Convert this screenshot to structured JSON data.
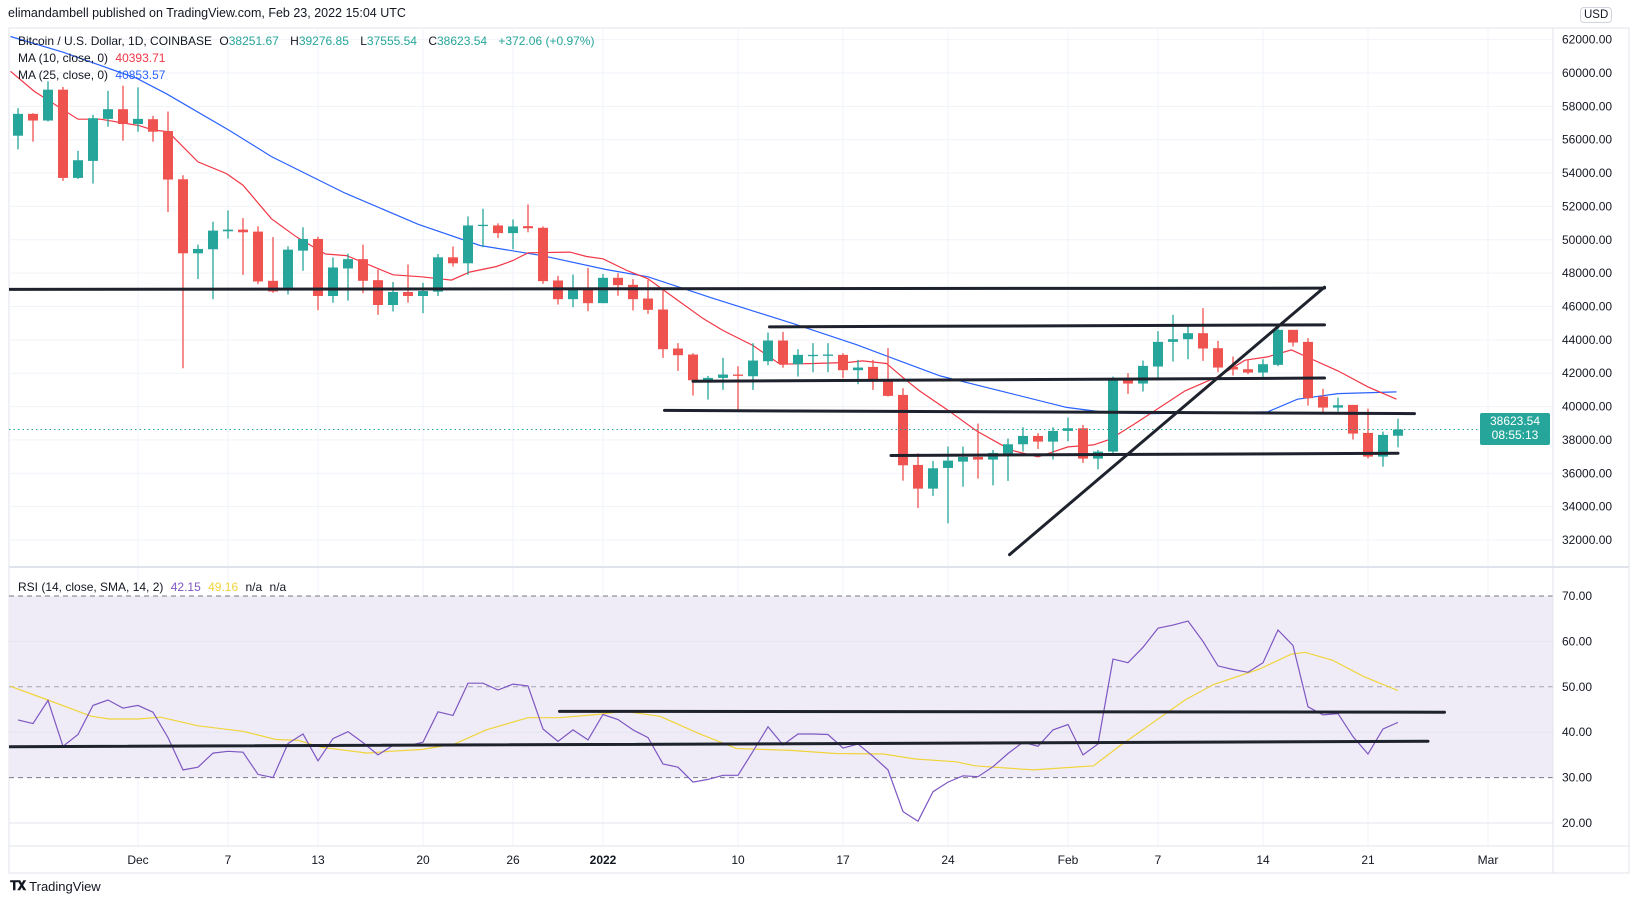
{
  "header": {
    "publisher_line": "elimandambell published on TradingView.com, Feb 23, 2022 15:04 UTC"
  },
  "legend": {
    "symbol": "Bitcoin / U.S. Dollar, 1D, COINBASE",
    "o_label": "O",
    "o": "38251.67",
    "h_label": "H",
    "h": "39276.85",
    "l_label": "L",
    "l": "37555.54",
    "c_label": "C",
    "c": "38623.54",
    "change": "+372.06 (+0.97%)",
    "ma10_label": "MA (10, close, 0)",
    "ma10_value": "40393.71",
    "ma25_label": "MA (25, close, 0)",
    "ma25_value": "40853.57"
  },
  "rsi_legend": {
    "label": "RSI (14, close, SMA, 14, 2)",
    "rsi": "42.15",
    "sma": "49.16",
    "na1": "n/a",
    "na2": "n/a"
  },
  "price_axis": {
    "currency": "USD",
    "last_price": "38623.54",
    "countdown": "08:55:13"
  },
  "footer": {
    "brand": "TradingView"
  },
  "colors": {
    "up": "#26a69a",
    "down": "#ef5350",
    "ma10": "#f23645",
    "ma25": "#2962ff",
    "rsi": "#7e57c2",
    "rsi_sma": "#f0d43a",
    "trendline": "#1e222d",
    "rsi_band": "#efecf8"
  },
  "chart_data": {
    "type": "candlestick",
    "title": "Bitcoin / U.S. Dollar, 1D, COINBASE",
    "ylim": [
      32000,
      62000
    ],
    "price_ticks": [
      "32000.00",
      "34000.00",
      "36000.00",
      "38000.00",
      "40000.00",
      "42000.00",
      "44000.00",
      "46000.00",
      "48000.00",
      "50000.00",
      "52000.00",
      "54000.00",
      "56000.00",
      "58000.00",
      "60000.00",
      "62000.00"
    ],
    "x_ticks": [
      {
        "label": "Dec",
        "index": 8
      },
      {
        "label": "7",
        "index": 14
      },
      {
        "label": "13",
        "index": 20
      },
      {
        "label": "20",
        "index": 27
      },
      {
        "label": "26",
        "index": 33
      },
      {
        "label": "2022",
        "index": 39
      },
      {
        "label": "10",
        "index": 48
      },
      {
        "label": "17",
        "index": 55
      },
      {
        "label": "24",
        "index": 62
      },
      {
        "label": "Feb",
        "index": 70
      },
      {
        "label": "7",
        "index": 76
      },
      {
        "label": "14",
        "index": 83
      },
      {
        "label": "21",
        "index": 90
      },
      {
        "label": "Mar",
        "index": 98
      }
    ],
    "ohlc": [
      [
        56240,
        57890,
        55420,
        57550
      ],
      [
        57550,
        57590,
        55880,
        57150
      ],
      [
        57150,
        59500,
        57090,
        59000
      ],
      [
        59000,
        59160,
        53530,
        53710
      ],
      [
        53710,
        55340,
        53650,
        54770
      ],
      [
        54730,
        57490,
        53370,
        57290
      ],
      [
        57250,
        58930,
        56780,
        57830
      ],
      [
        57830,
        59240,
        55940,
        56940
      ],
      [
        56940,
        59140,
        56480,
        57250
      ],
      [
        57230,
        57430,
        55880,
        56480
      ],
      [
        56520,
        57690,
        51660,
        53610
      ],
      [
        53630,
        53870,
        42300,
        49190
      ],
      [
        49190,
        49710,
        47650,
        49450
      ],
      [
        49430,
        51080,
        46440,
        50550
      ],
      [
        50510,
        51760,
        50070,
        50610
      ],
      [
        50610,
        51300,
        47900,
        50450
      ],
      [
        50490,
        50810,
        47340,
        47500
      ],
      [
        47540,
        50160,
        46820,
        46900
      ],
      [
        47130,
        49610,
        46720,
        49410
      ],
      [
        49350,
        50750,
        48140,
        50050
      ],
      [
        50050,
        50190,
        45780,
        46630
      ],
      [
        46630,
        48940,
        46230,
        48340
      ],
      [
        48280,
        49170,
        46350,
        48840
      ],
      [
        48840,
        49710,
        46800,
        47540
      ],
      [
        47580,
        48220,
        45500,
        46090
      ],
      [
        46090,
        47470,
        45700,
        46870
      ],
      [
        46870,
        48520,
        46230,
        46630
      ],
      [
        46630,
        47420,
        45600,
        46930
      ],
      [
        46890,
        49150,
        46630,
        48950
      ],
      [
        48950,
        49600,
        48400,
        48590
      ],
      [
        48590,
        51400,
        47900,
        50860
      ],
      [
        50860,
        51860,
        49550,
        50900
      ],
      [
        50860,
        50990,
        50100,
        50400
      ],
      [
        50400,
        51220,
        49430,
        50800
      ],
      [
        50820,
        52120,
        50450,
        50690
      ],
      [
        50720,
        50800,
        47360,
        47520
      ],
      [
        47560,
        47840,
        46120,
        46440
      ],
      [
        46440,
        47920,
        45960,
        47120
      ],
      [
        47120,
        48320,
        45720,
        46200
      ],
      [
        46200,
        47960,
        46200,
        47720
      ],
      [
        47720,
        48000,
        46640,
        47280
      ],
      [
        47300,
        47640,
        45760,
        46440
      ],
      [
        46480,
        47600,
        45560,
        45800
      ],
      [
        45820,
        47100,
        42920,
        43440
      ],
      [
        43480,
        43800,
        42140,
        43080
      ],
      [
        43120,
        43200,
        40660,
        41580
      ],
      [
        41580,
        41840,
        40420,
        41720
      ],
      [
        41720,
        42920,
        41000,
        41920
      ],
      [
        41920,
        42420,
        39700,
        41840
      ],
      [
        41820,
        43800,
        41000,
        42760
      ],
      [
        42720,
        44440,
        42480,
        43960
      ],
      [
        43960,
        44480,
        42330,
        42560
      ],
      [
        42540,
        43440,
        41800,
        43100
      ],
      [
        43100,
        43800,
        42060,
        43100
      ],
      [
        43100,
        43800,
        42060,
        43120
      ],
      [
        43100,
        43200,
        41700,
        42180
      ],
      [
        42180,
        42800,
        41340,
        42340
      ],
      [
        42380,
        42800,
        41000,
        41620
      ],
      [
        41640,
        43500,
        40600,
        40640
      ],
      [
        40700,
        41100,
        35560,
        36480
      ],
      [
        36500,
        37200,
        33920,
        35080
      ],
      [
        35080,
        36740,
        34640,
        36300
      ],
      [
        36320,
        37600,
        33000,
        36760
      ],
      [
        36700,
        37600,
        35200,
        36980
      ],
      [
        36980,
        38980,
        35680,
        36820
      ],
      [
        36820,
        37400,
        35280,
        37220
      ],
      [
        37180,
        38080,
        35540,
        37740
      ],
      [
        37740,
        38760,
        37300,
        38240
      ],
      [
        38240,
        38400,
        37460,
        37900
      ],
      [
        37900,
        38760,
        36820,
        38540
      ],
      [
        38540,
        39340,
        37920,
        38700
      ],
      [
        38700,
        38900,
        36620,
        36880
      ],
      [
        36880,
        37400,
        36240,
        37300
      ],
      [
        37300,
        41800,
        37100,
        41580
      ],
      [
        41580,
        42000,
        40760,
        41380
      ],
      [
        41380,
        42760,
        40900,
        42440
      ],
      [
        42400,
        44520,
        41660,
        43880
      ],
      [
        43880,
        45500,
        42700,
        44040
      ],
      [
        44040,
        44800,
        42840,
        44400
      ],
      [
        44400,
        45900,
        42740,
        43480
      ],
      [
        43500,
        43940,
        42060,
        42340
      ],
      [
        42380,
        43000,
        41860,
        42220
      ],
      [
        42240,
        42820,
        41940,
        42040
      ],
      [
        42040,
        42840,
        41640,
        42540
      ],
      [
        42500,
        44800,
        42420,
        44600
      ],
      [
        44600,
        44600,
        43600,
        43840
      ],
      [
        43880,
        44100,
        40060,
        40500
      ],
      [
        40600,
        41060,
        39520,
        39940
      ],
      [
        39940,
        40540,
        39700,
        40080
      ],
      [
        40100,
        40100,
        38020,
        38380
      ],
      [
        38420,
        39880,
        36880,
        37000
      ],
      [
        37000,
        38500,
        36400,
        38300
      ],
      [
        38251.67,
        39276.85,
        37555.54,
        38623.54
      ]
    ],
    "ma10": [
      [
        -0.5,
        60100
      ],
      [
        1.1,
        58890
      ],
      [
        4,
        57230
      ],
      [
        5.5,
        57230
      ],
      [
        8.1,
        56840
      ],
      [
        9,
        56580
      ],
      [
        10,
        56480
      ],
      [
        12,
        54670
      ],
      [
        13.9,
        53970
      ],
      [
        15,
        53270
      ],
      [
        16.9,
        51260
      ],
      [
        18.6,
        50150
      ],
      [
        20.5,
        49150
      ],
      [
        21.9,
        49050
      ],
      [
        25,
        47900
      ],
      [
        26.9,
        47780
      ],
      [
        28.9,
        47580
      ],
      [
        30.1,
        48060
      ],
      [
        31.9,
        48400
      ],
      [
        33,
        48760
      ],
      [
        34,
        49220
      ],
      [
        36.8,
        49260
      ],
      [
        37.9,
        49000
      ],
      [
        39,
        48860
      ],
      [
        40.6,
        48160
      ],
      [
        42,
        47660
      ],
      [
        44,
        46360
      ],
      [
        45.7,
        45260
      ],
      [
        47,
        44560
      ],
      [
        49,
        43660
      ],
      [
        50.8,
        42540
      ],
      [
        53,
        42580
      ],
      [
        55.3,
        42640
      ],
      [
        56.3,
        42740
      ],
      [
        57.9,
        42580
      ],
      [
        59,
        41740
      ],
      [
        60.1,
        40940
      ],
      [
        61.9,
        39840
      ],
      [
        63.9,
        38540
      ],
      [
        65.5,
        37740
      ],
      [
        66.4,
        37340
      ],
      [
        68,
        36980
      ],
      [
        70,
        37580
      ],
      [
        71.7,
        37700
      ],
      [
        72.8,
        38040
      ],
      [
        74.4,
        38940
      ],
      [
        77.8,
        40940
      ],
      [
        80.1,
        41840
      ],
      [
        81.8,
        42780
      ],
      [
        83.3,
        42980
      ],
      [
        84.9,
        43400
      ],
      [
        86,
        42940
      ],
      [
        88,
        42140
      ],
      [
        90,
        41180
      ],
      [
        91.9,
        40440
      ]
    ],
    "ma25": [
      [
        -0.5,
        62190
      ],
      [
        3,
        61250
      ],
      [
        7.9,
        59690
      ],
      [
        9.9,
        58750
      ],
      [
        14.1,
        56550
      ],
      [
        16.9,
        54990
      ],
      [
        21.8,
        52800
      ],
      [
        26.7,
        50920
      ],
      [
        30.8,
        49660
      ],
      [
        35,
        49040
      ],
      [
        39.2,
        48220
      ],
      [
        42,
        47780
      ],
      [
        46.2,
        46530
      ],
      [
        51.7,
        44970
      ],
      [
        55.9,
        43710
      ],
      [
        58.7,
        42770
      ],
      [
        61.5,
        41830
      ],
      [
        65.7,
        40890
      ],
      [
        69.9,
        39950
      ],
      [
        72.6,
        39640
      ],
      [
        75.4,
        39580
      ],
      [
        83.3,
        39680
      ],
      [
        85.3,
        40440
      ],
      [
        88,
        40780
      ],
      [
        91.9,
        40880
      ]
    ],
    "trendlines": [
      {
        "from": [
          -0.6,
          47030
        ],
        "to": [
          87.1,
          47100
        ]
      },
      {
        "from": [
          66.1,
          31120
        ],
        "to": [
          87.1,
          47160
        ]
      },
      {
        "from": [
          50.1,
          44780
        ],
        "to": [
          87.1,
          44900
        ]
      },
      {
        "from": [
          45,
          41520
        ],
        "to": [
          87.1,
          41710
        ]
      },
      {
        "from": [
          43.1,
          39770
        ],
        "to": [
          93.1,
          39580
        ]
      },
      {
        "from": [
          58.2,
          37070
        ],
        "to": [
          92,
          37200
        ]
      }
    ],
    "rsi": {
      "ylim": [
        20,
        70
      ],
      "ticks": [
        "20.00",
        "30.00",
        "40.00",
        "50.00",
        "60.00",
        "70.00"
      ],
      "upper_band": 70,
      "middle": 50,
      "lower_band": 30,
      "values": [
        42.7,
        41.9,
        47,
        36.9,
        39.5,
        45.9,
        47.1,
        45.3,
        45.9,
        44.4,
        38.8,
        31.7,
        32.3,
        35.4,
        35.8,
        35.6,
        30.7,
        30,
        37.5,
        39.6,
        33.7,
        38.6,
        40.1,
        37.7,
        35,
        37.1,
        37,
        37.8,
        44.5,
        43.7,
        50.8,
        50.8,
        49.3,
        50.6,
        50.2,
        40.7,
        38,
        40.5,
        38.3,
        43.9,
        42.8,
        40.5,
        38.8,
        33,
        32.3,
        29,
        29.6,
        30.5,
        30.5,
        35.8,
        41.2,
        37.2,
        39.6,
        39.6,
        39.5,
        36.5,
        37.4,
        34.7,
        31.7,
        22.5,
        20.4,
        26.9,
        29,
        30.4,
        30.2,
        32.4,
        35.3,
        37.8,
        36.9,
        40.5,
        41.7,
        35,
        37.4,
        56.1,
        55.3,
        58.7,
        62.9,
        63.6,
        64.5,
        60,
        54.6,
        53.8,
        53.2,
        55.3,
        62.5,
        59.1,
        45.6,
        43.8,
        44.1,
        39,
        35.2,
        40.7,
        42.15
      ],
      "sma": [
        [
          -0.5,
          50.1
        ],
        [
          1.9,
          47.2
        ],
        [
          4.9,
          43.5
        ],
        [
          6.1,
          42.9
        ],
        [
          8,
          42.9
        ],
        [
          9.5,
          43.3
        ],
        [
          12,
          41.4
        ],
        [
          15,
          40.2
        ],
        [
          17.2,
          38.4
        ],
        [
          18.7,
          38.2
        ],
        [
          20.2,
          36.7
        ],
        [
          23.3,
          35.4
        ],
        [
          24.8,
          35.8
        ],
        [
          26.9,
          36.2
        ],
        [
          29.1,
          37.4
        ],
        [
          31.2,
          40.5
        ],
        [
          34,
          43.2
        ],
        [
          36.1,
          43.2
        ],
        [
          38.6,
          43.9
        ],
        [
          40.4,
          44.6
        ],
        [
          42.8,
          43.5
        ],
        [
          45.4,
          39.7
        ],
        [
          47.9,
          36.4
        ],
        [
          51.5,
          36
        ],
        [
          54.5,
          35.3
        ],
        [
          57.7,
          35.2
        ],
        [
          59.8,
          34.1
        ],
        [
          62.5,
          33.5
        ],
        [
          63.8,
          32.6
        ],
        [
          67.7,
          31.7
        ],
        [
          69.9,
          32.2
        ],
        [
          71.7,
          32.6
        ],
        [
          73.5,
          37.1
        ],
        [
          77.8,
          47.1
        ],
        [
          79.7,
          50.5
        ],
        [
          82.7,
          53.8
        ],
        [
          84.9,
          57.2
        ],
        [
          85.8,
          57.6
        ],
        [
          87.6,
          55.9
        ],
        [
          89.7,
          52.3
        ],
        [
          92,
          49.16
        ]
      ],
      "trendlines": [
        {
          "from": [
            -0.6,
            36.8
          ],
          "to": [
            94,
            38
          ]
        },
        {
          "from": [
            36.1,
            44.6
          ],
          "to": [
            95.1,
            44.4
          ]
        }
      ]
    }
  }
}
